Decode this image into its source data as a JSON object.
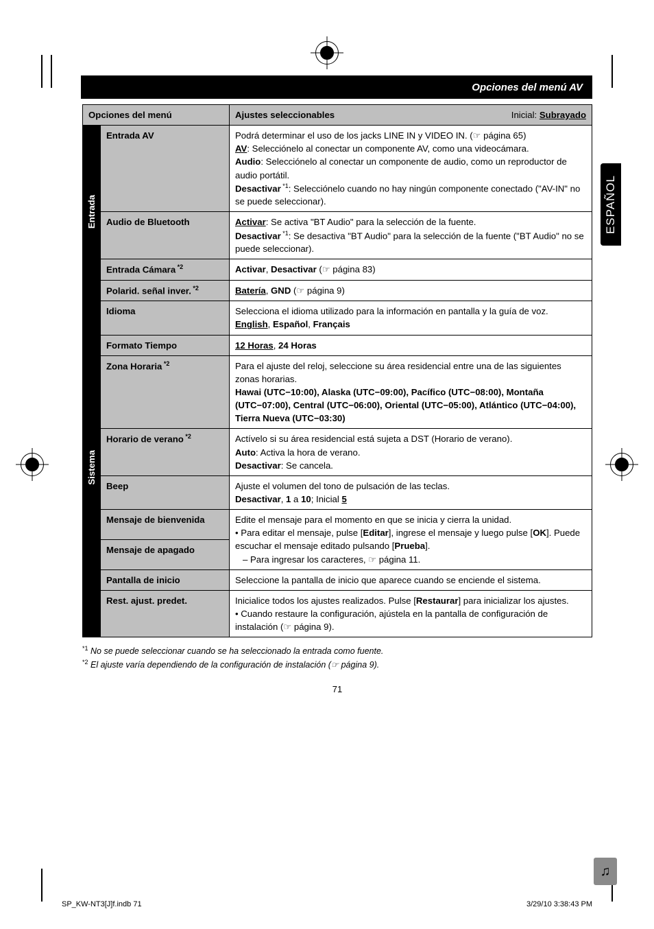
{
  "headerTitle": "Opciones del menú AV",
  "sideTab": "ESPAÑOL",
  "columnsHeader": {
    "left": "Opciones del menú",
    "mid": "Ajustes seleccionables",
    "rightNote": "Inicial:",
    "rightNoteU": "Subrayado"
  },
  "cat1": "Entrada",
  "cat2": "Sistema",
  "r1Label": "Entrada AV",
  "r1L1": "Podrá determinar el uso de los jacks LINE IN y VIDEO IN. (☞ página 65)",
  "r1L2a": "AV",
  "r1L2b": ": Selecciónelo al conectar un componente AV, como una videocámara.",
  "r1L3a": "Audio",
  "r1L3b": ": Selecciónelo al conectar un componente de audio, como un reproductor de audio portátil.",
  "r1L4a": "Desactivar",
  "r1L4s": " *1",
  "r1L4b": ": Selecciónelo cuando no hay ningún componente conectado (\"AV-IN\" no se puede seleccionar).",
  "r2Label": "Audio de Bluetooth",
  "r2L1a": "Activar",
  "r2L1b": ": Se activa \"BT Audio\" para la selección de la fuente.",
  "r2L2a": "Desactivar",
  "r2L2s": " *1",
  "r2L2b": ": Se desactiva \"BT Audio\" para la selección de la fuente (\"BT Audio\" no se puede seleccionar).",
  "r3Label": "Entrada Cámara",
  "r3Ls": " *2",
  "r3Va": "Activar",
  "r3Vcomma": ", ",
  "r3Vb": "Desactivar",
  "r3Vc": " (☞ página 83)",
  "r4Label": "Polarid. señal inver.",
  "r4Ls": " *2",
  "r4Va": "Batería",
  "r4Vb": "GND",
  "r4Vc": " (☞ página 9)",
  "r5Label": "Idioma",
  "r5L1": "Selecciona el idioma utilizado para la información en pantalla y la guía de voz.",
  "r5La": "English",
  "r5Lb": "Español",
  "r5Lc": "Français",
  "r6Label": "Formato Tiempo",
  "r6a": "12 Horas",
  "r6b": "24 Horas",
  "r7Label": "Zona Horaria",
  "r7Ls": " *2",
  "r7L1": "Para el ajuste del reloj, seleccione su área residencial entre una de las siguientes zonas horarias.",
  "r7L2": "Hawai (UTC−10:00), Alaska (UTC−09:00), Pacífico (UTC−08:00), Montaña (UTC−07:00), Central (UTC−06:00), Oriental (UTC−05:00), Atlántico (UTC−04:00), Tierra Nueva (UTC−03:30)",
  "r8Label": "Horario de verano",
  "r8Ls": " *2",
  "r8L1": "Actívelo si su área residencial está sujeta a DST (Horario de verano).",
  "r8La": "Auto",
  "r8Lb": ": Activa la hora de verano.",
  "r8Lc": "Desactivar",
  "r8Ld": ": Se cancela.",
  "r9Label": "Beep",
  "r9L1": "Ajuste el volumen del tono de pulsación de las teclas.",
  "r9a": "Desactivar",
  "r9b": "1",
  "r9mid": " a ",
  "r9c": "10",
  "r9d": "; Inicial ",
  "r9e": "5",
  "r10LabelA": "Mensaje de bienvenida",
  "r10LabelB": "Mensaje de apagado",
  "r10L1": "Edite el mensaje para el momento en que se inicia y cierra la unidad.",
  "r10L2a": "• Para editar el mensaje, pulse [",
  "r10L2b": "Editar",
  "r10L2c": "], ingrese el mensaje y luego pulse [",
  "r10L2d": "OK",
  "r10L2e": "]. Puede escuchar el mensaje editado pulsando [",
  "r10L2f": "Prueba",
  "r10L2g": "].",
  "r10L3": "– Para ingresar los caracteres, ☞ página 11.",
  "r11Label": "Pantalla de inicio",
  "r11L1": "Seleccione la pantalla de inicio que aparece cuando se enciende el sistema.",
  "r12Label": "Rest. ajust. predet.",
  "r12L1a": "Inicialice todos los ajustes realizados. Pulse [",
  "r12L1b": "Restaurar",
  "r12L1c": "] para inicializar los ajustes.",
  "r12L2": "• Cuando restaure la configuración, ajústela en la pantalla de configuración de instalación (☞ página 9).",
  "fn1s": "*1",
  "fn1": "No se puede seleccionar cuando se ha seleccionado la entrada como fuente.",
  "fn2s": "*2",
  "fn2": "El ajuste varía dependiendo de la configuración de instalación (☞ página 9).",
  "pageNum": "71",
  "footerLeft": "SP_KW-NT3[J]f.indb   71",
  "footerRight": "3/29/10   3:38:43 PM"
}
